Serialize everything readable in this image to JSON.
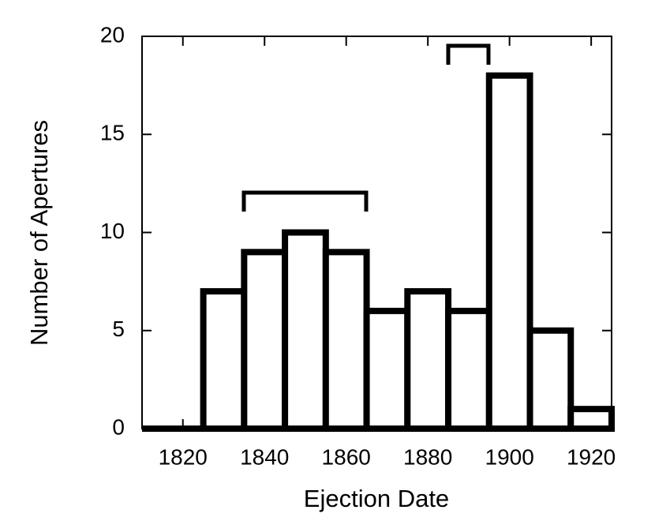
{
  "chart_data": {
    "type": "histogram",
    "xlabel": "Ejection Date",
    "ylabel": "Number of Apertures",
    "bins": [
      1825,
      1835,
      1845,
      1855,
      1865,
      1875,
      1885,
      1895,
      1905,
      1915,
      1925
    ],
    "values": [
      7,
      9,
      10,
      9,
      6,
      7,
      6,
      18,
      5,
      1
    ],
    "color": "#ffffff",
    "edgecolor": "#000000",
    "xlim": [
      1810,
      1925
    ],
    "xticks": [
      1820,
      1840,
      1860,
      1880,
      1900,
      1920
    ],
    "ylim": [
      0,
      20
    ],
    "yticks": [
      0,
      5,
      10,
      15,
      20
    ],
    "grid": false
  }
}
